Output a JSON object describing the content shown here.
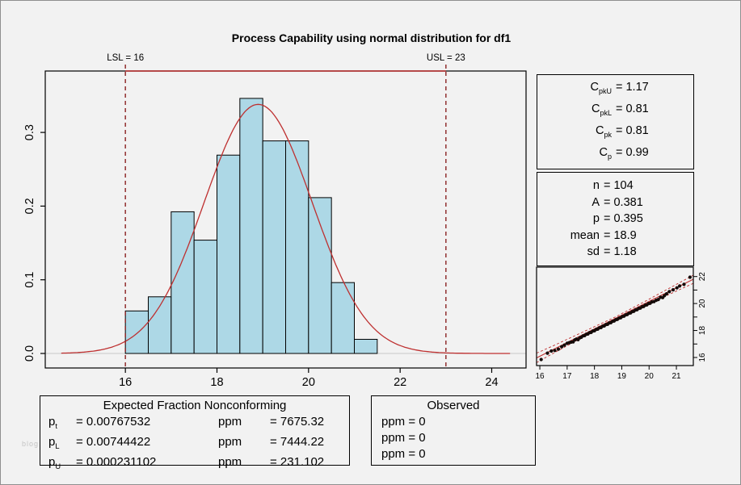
{
  "title": "Process Capability using normal distribution for df1",
  "colors": {
    "background": "#F2F2F2",
    "bar_fill": "#ADD8E6",
    "bar_stroke": "#000000",
    "curve_red": "#BE3030",
    "spec_dash_red": "#8B2323",
    "top_band_red": "#B22222",
    "zero_line_gray": "#C8C8C8",
    "qq_point": "#140A08",
    "panel_border": "#000000"
  },
  "spec": {
    "lsl": 16,
    "usl": 23,
    "lsl_label": "LSL = 16",
    "usl_label": "USL = 23"
  },
  "capability": {
    "rows": [
      {
        "base": "C",
        "sub": "pkU",
        "value_text": "= 1.17"
      },
      {
        "base": "C",
        "sub": "pkL",
        "value_text": "= 0.81"
      },
      {
        "base": "C",
        "sub": "pk",
        "value_text": "= 0.81"
      },
      {
        "base": "C",
        "sub": "p",
        "value_text": "= 0.99"
      }
    ]
  },
  "stats": {
    "rows": [
      {
        "label": "n",
        "value_text": "= 104"
      },
      {
        "label": "A",
        "value_text": "= 0.381"
      },
      {
        "label": "p",
        "value_text": "= 0.395"
      },
      {
        "label": "mean",
        "value_text": "= 18.9"
      },
      {
        "label": "sd",
        "value_text": "= 1.18"
      }
    ]
  },
  "expected": {
    "title": "Expected Fraction Nonconforming",
    "rows": [
      {
        "base": "p",
        "sub": "t",
        "p_value": "= 0.00767532",
        "ppm_label": "ppm",
        "ppm_value": "= 7675.32"
      },
      {
        "base": "p",
        "sub": "L",
        "p_value": "= 0.00744422",
        "ppm_label": "ppm",
        "ppm_value": "= 7444.22"
      },
      {
        "base": "p",
        "sub": "U",
        "p_value": "= 0.000231102",
        "ppm_label": "ppm",
        "ppm_value": "= 231.102"
      }
    ]
  },
  "observed": {
    "title": "Observed",
    "rows": [
      "ppm = 0",
      "ppm = 0",
      "ppm = 0"
    ]
  },
  "watermark": "blog",
  "chart_data": [
    {
      "type": "bar",
      "subtype": "histogram-with-normal-density",
      "title": "Process Capability using normal distribution for df1",
      "xlabel": "",
      "ylabel": "",
      "xlim": [
        14.25,
        24.75
      ],
      "ylim": [
        -0.02,
        0.383
      ],
      "x_ticks": [
        16,
        18,
        20,
        22,
        24
      ],
      "y_ticks": [
        "0.0",
        "0.1",
        "0.2",
        "0.3"
      ],
      "y_tick_values": [
        0,
        0.1,
        0.2,
        0.3
      ],
      "bins_start": 16.0,
      "bin_width": 0.5,
      "densities": [
        0.0577,
        0.0769,
        0.1923,
        0.1538,
        0.2692,
        0.3462,
        0.2885,
        0.2885,
        0.2115,
        0.0962,
        0.0192
      ],
      "counts": [
        3,
        4,
        10,
        8,
        14,
        18,
        15,
        15,
        11,
        5,
        1
      ],
      "normal_mean": 18.9,
      "normal_sd": 1.18,
      "curve_range": [
        14.6,
        24.4
      ],
      "lsl": 16,
      "usl": 23,
      "zero_line": 0,
      "grid": false
    },
    {
      "type": "scatter",
      "subtype": "normal-qq-plot",
      "xlim": [
        15.88,
        21.62
      ],
      "ylim": [
        15.4,
        22.7
      ],
      "x_ticks": [
        16,
        17,
        18,
        19,
        20,
        21
      ],
      "y_ticks_labeled": [
        16,
        18,
        20,
        22
      ],
      "y_ticks_minor": [
        17,
        19,
        21
      ],
      "line": [
        [
          15.88,
          15.97
        ],
        [
          21.62,
          21.8
        ]
      ],
      "band_upper": [
        [
          15.88,
          16.32
        ],
        [
          16.5,
          16.88
        ],
        [
          17.5,
          17.82
        ],
        [
          18.75,
          18.99
        ],
        [
          20.0,
          20.32
        ],
        [
          21.0,
          21.42
        ],
        [
          21.62,
          22.1
        ]
      ],
      "band_lower": [
        [
          15.88,
          15.62
        ],
        [
          16.5,
          16.32
        ],
        [
          17.5,
          17.42
        ],
        [
          18.75,
          18.79
        ],
        [
          20.0,
          20.0
        ],
        [
          21.0,
          20.92
        ],
        [
          21.62,
          21.5
        ]
      ],
      "points": [
        [
          16.05,
          15.85
        ],
        [
          16.28,
          16.32
        ],
        [
          16.42,
          16.48
        ],
        [
          16.55,
          16.52
        ],
        [
          16.68,
          16.62
        ],
        [
          16.8,
          16.8
        ],
        [
          16.9,
          16.92
        ],
        [
          17.0,
          17.05
        ],
        [
          17.08,
          17.1
        ],
        [
          17.15,
          17.14
        ],
        [
          17.22,
          17.16
        ],
        [
          17.28,
          17.3
        ],
        [
          17.34,
          17.36
        ],
        [
          17.4,
          17.32
        ],
        [
          17.46,
          17.46
        ],
        [
          17.52,
          17.5
        ],
        [
          17.58,
          17.6
        ],
        [
          17.64,
          17.62
        ],
        [
          17.7,
          17.72
        ],
        [
          17.76,
          17.74
        ],
        [
          17.82,
          17.84
        ],
        [
          17.88,
          17.86
        ],
        [
          17.94,
          17.96
        ],
        [
          18.0,
          17.98
        ],
        [
          18.06,
          18.08
        ],
        [
          18.12,
          18.1
        ],
        [
          18.18,
          18.2
        ],
        [
          18.24,
          18.22
        ],
        [
          18.3,
          18.32
        ],
        [
          18.36,
          18.34
        ],
        [
          18.42,
          18.44
        ],
        [
          18.48,
          18.46
        ],
        [
          18.54,
          18.56
        ],
        [
          18.6,
          18.58
        ],
        [
          18.66,
          18.68
        ],
        [
          18.72,
          18.7
        ],
        [
          18.78,
          18.8
        ],
        [
          18.84,
          18.82
        ],
        [
          18.9,
          18.92
        ],
        [
          18.96,
          18.94
        ],
        [
          19.02,
          19.04
        ],
        [
          19.08,
          19.06
        ],
        [
          19.14,
          19.16
        ],
        [
          19.2,
          19.18
        ],
        [
          19.26,
          19.28
        ],
        [
          19.32,
          19.3
        ],
        [
          19.38,
          19.4
        ],
        [
          19.44,
          19.42
        ],
        [
          19.5,
          19.52
        ],
        [
          19.56,
          19.54
        ],
        [
          19.62,
          19.64
        ],
        [
          19.68,
          19.66
        ],
        [
          19.74,
          19.76
        ],
        [
          19.8,
          19.78
        ],
        [
          19.86,
          19.88
        ],
        [
          19.92,
          19.9
        ],
        [
          19.98,
          20.0
        ],
        [
          20.04,
          20.02
        ],
        [
          20.1,
          20.12
        ],
        [
          20.18,
          20.14
        ],
        [
          20.26,
          20.24
        ],
        [
          20.34,
          20.3
        ],
        [
          20.42,
          20.46
        ],
        [
          20.5,
          20.44
        ],
        [
          20.56,
          20.58
        ],
        [
          20.64,
          20.72
        ],
        [
          20.74,
          20.88
        ],
        [
          20.88,
          21.02
        ],
        [
          21.02,
          21.16
        ],
        [
          21.12,
          21.3
        ],
        [
          21.28,
          21.42
        ],
        [
          21.5,
          21.95
        ]
      ],
      "grid": false
    }
  ]
}
